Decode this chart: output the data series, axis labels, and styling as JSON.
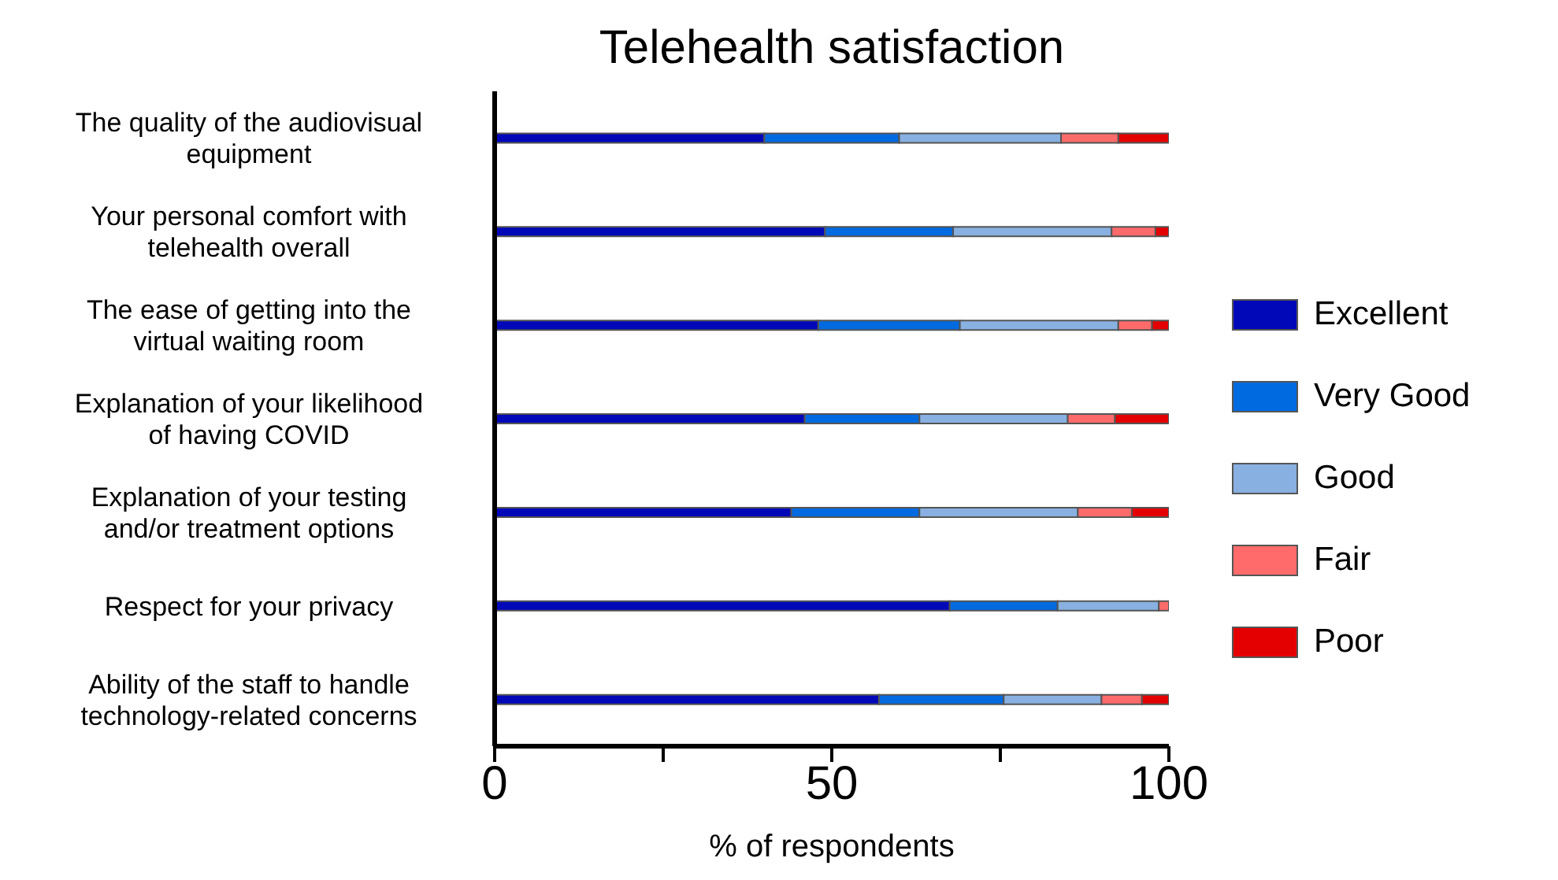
{
  "chart_data": {
    "type": "bar",
    "orientation": "horizontal",
    "stacked": true,
    "title": "Telehealth satisfaction",
    "xlabel": "% of respondents",
    "categories": [
      "The quality of the audiovisual equipment",
      "Your personal comfort with telehealth overall",
      "The ease of getting into the virtual waiting room",
      "Explanation of your likelihood of having COVID",
      "Explanation of your testing and/or treatment options",
      "Respect for your privacy",
      "Ability of the staff to handle technology-related concerns"
    ],
    "series": [
      {
        "name": "Excellent",
        "color": "#0008b8",
        "values": [
          40,
          49,
          48,
          46,
          44,
          67.5,
          57
        ]
      },
      {
        "name": "Very Good",
        "color": "#006ae0",
        "values": [
          20,
          19,
          21,
          17,
          19,
          16,
          18.5
        ]
      },
      {
        "name": "Good",
        "color": "#88b0e0",
        "values": [
          24,
          23.5,
          23.5,
          22,
          23.5,
          15,
          14.5
        ]
      },
      {
        "name": "Fair",
        "color": "#ff6b6b",
        "values": [
          8.5,
          6.5,
          5,
          7,
          8,
          1.5,
          6
        ]
      },
      {
        "name": "Poor",
        "color": "#e40000",
        "values": [
          7.5,
          2,
          2.5,
          8,
          5.5,
          0,
          4
        ]
      }
    ],
    "xlim": [
      0,
      100
    ],
    "xticks": [
      0,
      {
        "value": 25,
        "label": null
      },
      50,
      {
        "value": 75,
        "label": null
      },
      100
    ],
    "grid": false,
    "legend": "right"
  }
}
